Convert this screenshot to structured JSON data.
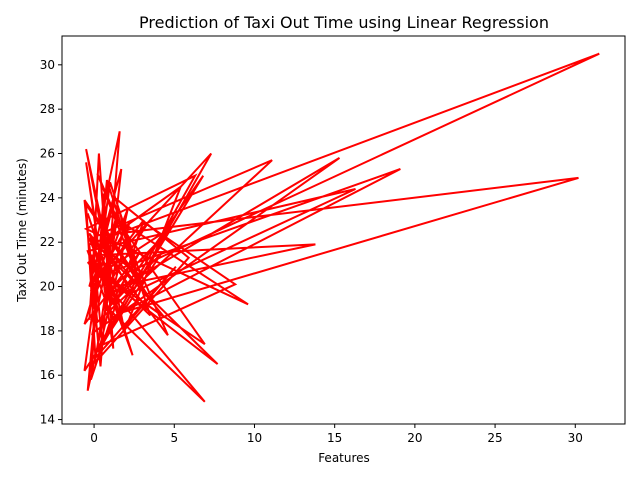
{
  "chart_data": {
    "type": "line",
    "title": "Prediction of Taxi Out Time using Linear Regression",
    "xlabel": "Features",
    "ylabel": "Taxi Out Time (minutes)",
    "xlim": [
      -2.0,
      33.1
    ],
    "ylim": [
      13.8,
      31.3
    ],
    "x_ticks": [
      0,
      5,
      10,
      15,
      20,
      25,
      30
    ],
    "y_ticks": [
      14,
      16,
      18,
      20,
      22,
      24,
      26,
      28,
      30
    ],
    "grid": false,
    "legend": "none",
    "series": [
      {
        "color": "#ff0000",
        "x": [
          -0.3,
          0.1,
          -0.5,
          1.2,
          0.3,
          -0.2,
          2.1,
          -0.4,
          0.8,
          3.5,
          -0.1,
          1.6,
          0.4,
          -0.6,
          2.8,
          0.2,
          4.6,
          -0.3,
          1.1,
          0.6,
          -0.2,
          3.1,
          0.9,
          -0.5,
          1.9,
          5.4,
          0.0,
          2.4,
          -0.4,
          1.4,
          6.8,
          0.5,
          -0.1,
          2.9,
          1.0,
          -0.6,
          4.2,
          0.7,
          1.7,
          -0.3,
          7.3,
          0.3,
          2.2,
          -0.2,
          1.3,
          5.9,
          0.1,
          -0.5,
          3.7,
          0.8,
          11.1,
          0.2,
          -0.3,
          31.5,
          2.6,
          1.5,
          -0.1,
          15.3,
          0.6,
          4.9,
          0.0,
          19.1,
          1.1,
          -0.4,
          16.3,
          2.3,
          0.4,
          30.2,
          1.6,
          -0.2,
          13.8,
          0.7,
          3.3,
          8.8,
          0.3,
          6.3,
          -0.5,
          9.6,
          1.3,
          2.6,
          6.9,
          0.2,
          7.7,
          -0.3,
          1.8,
          5.1,
          0.1,
          1.5,
          -0.6,
          2.8,
          0.9,
          6.9,
          -0.4,
          4.4,
          0.5,
          1.3
        ],
        "y": [
          18.5,
          22.8,
          25.6,
          17.2,
          26.0,
          19.1,
          23.5,
          15.3,
          24.8,
          18.7,
          21.2,
          27.0,
          16.4,
          23.9,
          20.3,
          25.1,
          17.8,
          22.4,
          19.6,
          24.2,
          15.8,
          23.0,
          20.9,
          26.2,
          18.0,
          24.5,
          21.7,
          16.9,
          23.3,
          19.4,
          25.0,
          17.5,
          22.1,
          20.5,
          24.7,
          16.2,
          21.5,
          18.9,
          25.3,
          20.0,
          26.0,
          17.1,
          22.9,
          19.8,
          24.0,
          21.3,
          16.6,
          23.7,
          19.2,
          22.5,
          25.7,
          18.4,
          21.9,
          30.5,
          20.8,
          23.6,
          17.9,
          25.8,
          19.5,
          22.7,
          20.4,
          25.3,
          18.6,
          21.6,
          24.4,
          19.7,
          22.3,
          24.9,
          18.8,
          21.4,
          21.9,
          19.9,
          22.8,
          20.1,
          17.3,
          25.0,
          22.6,
          19.2,
          23.1,
          21.8,
          17.4,
          20.7,
          16.5,
          22.2,
          18.1,
          20.9,
          16.8,
          23.4,
          18.3,
          21.5,
          19.0,
          14.8,
          21.1,
          18.6,
          22.0,
          20.2
        ]
      }
    ]
  }
}
